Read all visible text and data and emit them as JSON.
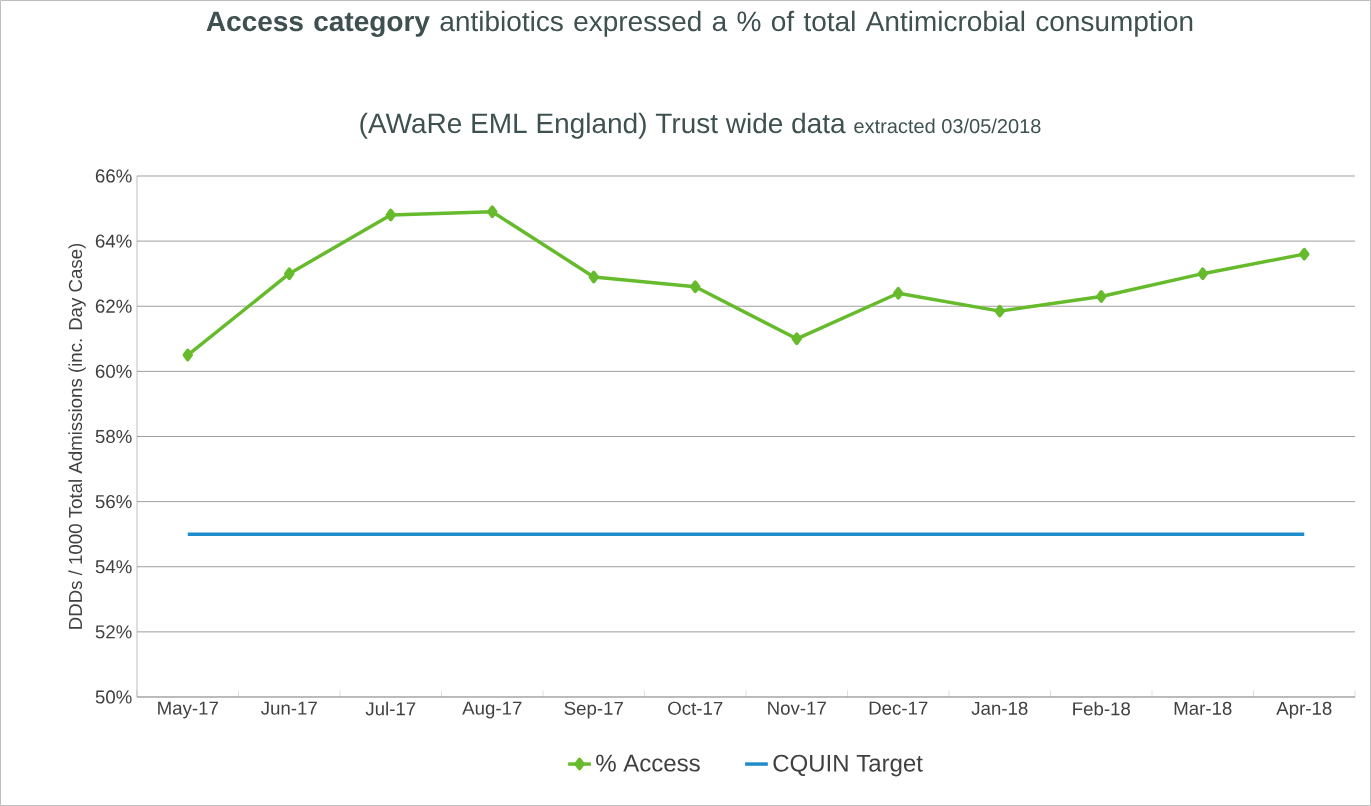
{
  "chart_data": {
    "type": "line",
    "title": "**Access category** antibiotics expressed a % of total Antimicrobial consumption",
    "subtitle": "(AWaRe EML England) Trust wide data",
    "annotations": [
      "extracted 03/05/2018"
    ],
    "ylabel": "DDDs / 1000 Total Admissions (inc. Day Case)",
    "categories": [
      "May-17",
      "Jun-17",
      "Jul-17",
      "Aug-17",
      "Sep-17",
      "Oct-17",
      "Nov-17",
      "Dec-17",
      "Jan-18",
      "Feb-18",
      "Mar-18",
      "Apr-18"
    ],
    "series": [
      {
        "name": "% Access",
        "color": "#66bb2c",
        "marker": "diamond",
        "values": [
          60.5,
          63.0,
          64.8,
          64.9,
          62.9,
          62.6,
          61.0,
          62.4,
          61.85,
          62.3,
          63.0,
          63.6
        ]
      },
      {
        "name": "CQUIN Target",
        "color": "#1f8ccb",
        "marker": "none",
        "values": [
          55,
          55,
          55,
          55,
          55,
          55,
          55,
          55,
          55,
          55,
          55,
          55
        ]
      }
    ],
    "ylim": [
      50,
      66
    ],
    "yticks": [
      {
        "value": 50,
        "label": "50%"
      },
      {
        "value": 52,
        "label": "52%"
      },
      {
        "value": 54,
        "label": "54%"
      },
      {
        "value": 56,
        "label": "56%"
      },
      {
        "value": 58,
        "label": "58%"
      },
      {
        "value": 60,
        "label": "60%"
      },
      {
        "value": 62,
        "label": "62%"
      },
      {
        "value": 64,
        "label": "64%"
      },
      {
        "value": 66,
        "label": "66%"
      }
    ],
    "grid": "y",
    "legend": "bottom"
  }
}
